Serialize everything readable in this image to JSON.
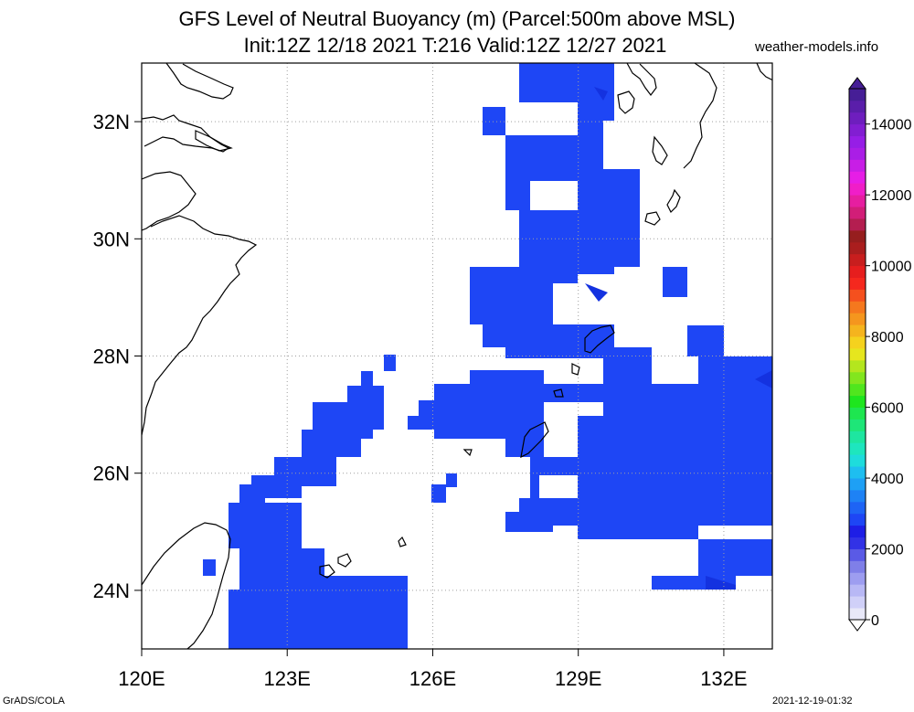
{
  "title_line1": "GFS Level of Neutral Buoyancy (m) (Parcel:500m above MSL)",
  "title_line2": "Init:12Z 12/18 2021 T:216 Valid:12Z 12/27 2021",
  "site": "weather-models.info",
  "footer_left": "GrADS/COLA",
  "footer_right": "2021-12-19-01:32",
  "map": {
    "lon_range": [
      120,
      133
    ],
    "lat_range": [
      23,
      33
    ],
    "x_ticks": [
      {
        "lon": 120,
        "label": "120E"
      },
      {
        "lon": 123,
        "label": "123E"
      },
      {
        "lon": 126,
        "label": "126E"
      },
      {
        "lon": 129,
        "label": "129E"
      },
      {
        "lon": 132,
        "label": "132E"
      }
    ],
    "y_ticks": [
      {
        "lat": 24,
        "label": "24N"
      },
      {
        "lat": 26,
        "label": "26N"
      },
      {
        "lat": 28,
        "label": "28N"
      },
      {
        "lat": 30,
        "label": "30N"
      },
      {
        "lat": 32,
        "label": "32N"
      }
    ],
    "field_color": "#1e46f5",
    "field_color_dark": "#1432e0",
    "coastline_color": "#000000",
    "grid_color": "#a0a0a0"
  },
  "colorbar": {
    "labels": [
      "0",
      "2000",
      "4000",
      "6000",
      "8000",
      "10000",
      "12000",
      "14000"
    ],
    "values": [
      0,
      2000,
      4000,
      6000,
      8000,
      10000,
      12000,
      14000
    ],
    "min": 0,
    "max": 15000,
    "colors": [
      "#e8e8f8",
      "#d0d0f8",
      "#b8b8f5",
      "#9d9df0",
      "#7f7fe8",
      "#5a5ae6",
      "#3232e6",
      "#1e1ee6",
      "#1e46f5",
      "#1e64f5",
      "#1e82f5",
      "#1ea0f5",
      "#1ebef0",
      "#1edcdc",
      "#1ee6be",
      "#1ee6a0",
      "#1ee678",
      "#1ee650",
      "#1ee61e",
      "#50e61e",
      "#82e61e",
      "#b4e61e",
      "#e6e61e",
      "#f5d21e",
      "#f5b41e",
      "#f5961e",
      "#f5781e",
      "#f5501e",
      "#f5281e",
      "#e61e1e",
      "#c81e1e",
      "#aa1e1e",
      "#961e1e",
      "#b41e50",
      "#d21e78",
      "#e61ea0",
      "#f01ec8",
      "#e61ee6",
      "#c81ee6",
      "#aa1ee6",
      "#961ee6",
      "#821ed2",
      "#6e1ebe",
      "#5a1eaa",
      "#461e96"
    ]
  }
}
